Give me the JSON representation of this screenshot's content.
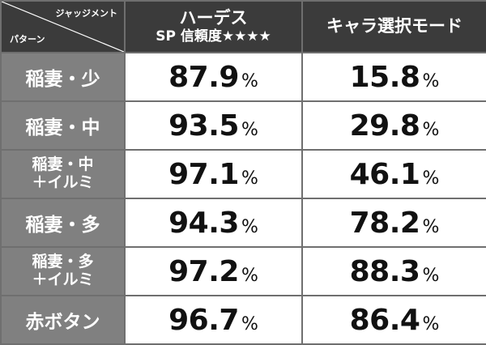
{
  "header": {
    "corner_top_right": "ジャッジメント",
    "corner_bottom_left": "パターン",
    "col1_line1": "ハーデス",
    "col1_line2": "SP 信頼度★★★★",
    "col2": "キャラ選択モード"
  },
  "unit": "%",
  "rows": [
    {
      "pattern_line1": "稲妻・少",
      "pattern_line2": "",
      "hades_sp": "87.9",
      "chara_mode": "15.8"
    },
    {
      "pattern_line1": "稲妻・中",
      "pattern_line2": "",
      "hades_sp": "93.5",
      "chara_mode": "29.8"
    },
    {
      "pattern_line1": "稲妻・中",
      "pattern_line2": "＋イルミ",
      "hades_sp": "97.1",
      "chara_mode": "46.1"
    },
    {
      "pattern_line1": "稲妻・多",
      "pattern_line2": "",
      "hades_sp": "94.3",
      "chara_mode": "78.2"
    },
    {
      "pattern_line1": "稲妻・多",
      "pattern_line2": "＋イルミ",
      "hades_sp": "97.2",
      "chara_mode": "88.3"
    },
    {
      "pattern_line1": "赤ボタン",
      "pattern_line2": "",
      "hades_sp": "96.7",
      "chara_mode": "86.4"
    }
  ]
}
